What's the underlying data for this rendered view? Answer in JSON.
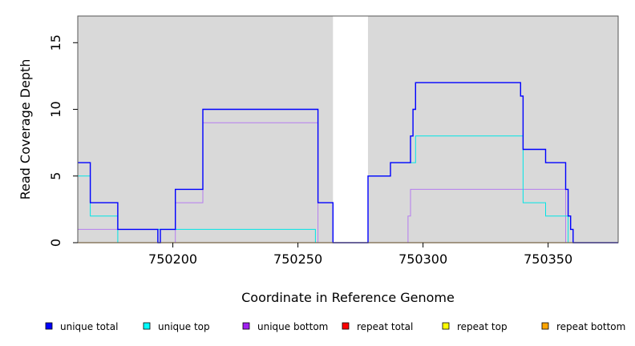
{
  "chart_data": {
    "type": "line",
    "title": "",
    "xlabel": "Coordinate in Reference Genome",
    "ylabel": "Read Coverage Depth",
    "xlim": [
      750162,
      750378
    ],
    "ylim": [
      0,
      17
    ],
    "x_ticks": [
      750200,
      750250,
      750300,
      750350
    ],
    "y_ticks": [
      0,
      5,
      10,
      15
    ],
    "grid": false,
    "background_regions": [
      {
        "from": 750162,
        "to": 750264,
        "color": "#d9d9d9"
      },
      {
        "from": 750278,
        "to": 750378,
        "color": "#d9d9d9"
      }
    ],
    "legend_position": "bottom",
    "series": [
      {
        "name": "unique total",
        "color": "#0000ff",
        "width": 1.4,
        "points": [
          [
            750162,
            6
          ],
          [
            750167,
            6
          ],
          [
            750167,
            3
          ],
          [
            750178,
            3
          ],
          [
            750178,
            1
          ],
          [
            750194,
            1
          ],
          [
            750194,
            0
          ],
          [
            750195,
            0
          ],
          [
            750195,
            1
          ],
          [
            750201,
            1
          ],
          [
            750201,
            4
          ],
          [
            750212,
            4
          ],
          [
            750212,
            10
          ],
          [
            750258,
            10
          ],
          [
            750258,
            3
          ],
          [
            750264,
            3
          ],
          [
            750264,
            0
          ],
          [
            750278,
            0
          ],
          [
            750278,
            5
          ],
          [
            750287,
            5
          ],
          [
            750287,
            6
          ],
          [
            750295,
            6
          ],
          [
            750295,
            8
          ],
          [
            750296,
            8
          ],
          [
            750296,
            10
          ],
          [
            750297,
            10
          ],
          [
            750297,
            12
          ],
          [
            750339,
            12
          ],
          [
            750339,
            11
          ],
          [
            750340,
            11
          ],
          [
            750340,
            7
          ],
          [
            750349,
            7
          ],
          [
            750349,
            6
          ],
          [
            750357,
            6
          ],
          [
            750357,
            4
          ],
          [
            750358,
            4
          ],
          [
            750358,
            2
          ],
          [
            750359,
            2
          ],
          [
            750359,
            1
          ],
          [
            750360,
            1
          ],
          [
            750360,
            0
          ],
          [
            750378,
            0
          ]
        ]
      },
      {
        "name": "unique top",
        "color": "#00e5e5",
        "width": 1,
        "points": [
          [
            750162,
            5
          ],
          [
            750167,
            5
          ],
          [
            750167,
            2
          ],
          [
            750178,
            2
          ],
          [
            750178,
            0
          ],
          [
            750194,
            0
          ],
          [
            750194,
            1
          ],
          [
            750257,
            1
          ],
          [
            750257,
            0
          ],
          [
            750278,
            0
          ],
          [
            750278,
            5
          ],
          [
            750287,
            5
          ],
          [
            750287,
            6
          ],
          [
            750297,
            6
          ],
          [
            750297,
            8
          ],
          [
            750340,
            8
          ],
          [
            750340,
            3
          ],
          [
            750349,
            3
          ],
          [
            750349,
            2
          ],
          [
            750358,
            2
          ],
          [
            750358,
            0
          ],
          [
            750378,
            0
          ]
        ]
      },
      {
        "name": "unique bottom",
        "color": "#b57cf0",
        "width": 1,
        "points": [
          [
            750162,
            1
          ],
          [
            750194,
            1
          ],
          [
            750194,
            0
          ],
          [
            750201,
            0
          ],
          [
            750201,
            3
          ],
          [
            750212,
            3
          ],
          [
            750212,
            9
          ],
          [
            750258,
            9
          ],
          [
            750258,
            0
          ],
          [
            750294,
            0
          ],
          [
            750294,
            2
          ],
          [
            750295,
            2
          ],
          [
            750295,
            4
          ],
          [
            750357,
            4
          ],
          [
            750357,
            0
          ],
          [
            750378,
            0
          ]
        ]
      },
      {
        "name": "repeat total",
        "color": "#ff0000",
        "width": 1,
        "points": [
          [
            750162,
            0
          ],
          [
            750378,
            0
          ]
        ]
      },
      {
        "name": "repeat top",
        "color": "#ffff00",
        "width": 1,
        "points": [
          [
            750162,
            0
          ],
          [
            750378,
            0
          ]
        ]
      },
      {
        "name": "repeat bottom",
        "color": "#ffa500",
        "width": 1.2,
        "points": [
          [
            750162,
            0
          ],
          [
            750378,
            0
          ]
        ]
      }
    ],
    "legend": [
      {
        "label": "unique total",
        "color": "#0000ff"
      },
      {
        "label": "unique top",
        "color": "#00ffff"
      },
      {
        "label": "unique bottom",
        "color": "#a020f0"
      },
      {
        "label": "repeat total",
        "color": "#ff0000"
      },
      {
        "label": "repeat top",
        "color": "#ffff00"
      },
      {
        "label": "repeat bottom",
        "color": "#ffa500"
      }
    ]
  }
}
